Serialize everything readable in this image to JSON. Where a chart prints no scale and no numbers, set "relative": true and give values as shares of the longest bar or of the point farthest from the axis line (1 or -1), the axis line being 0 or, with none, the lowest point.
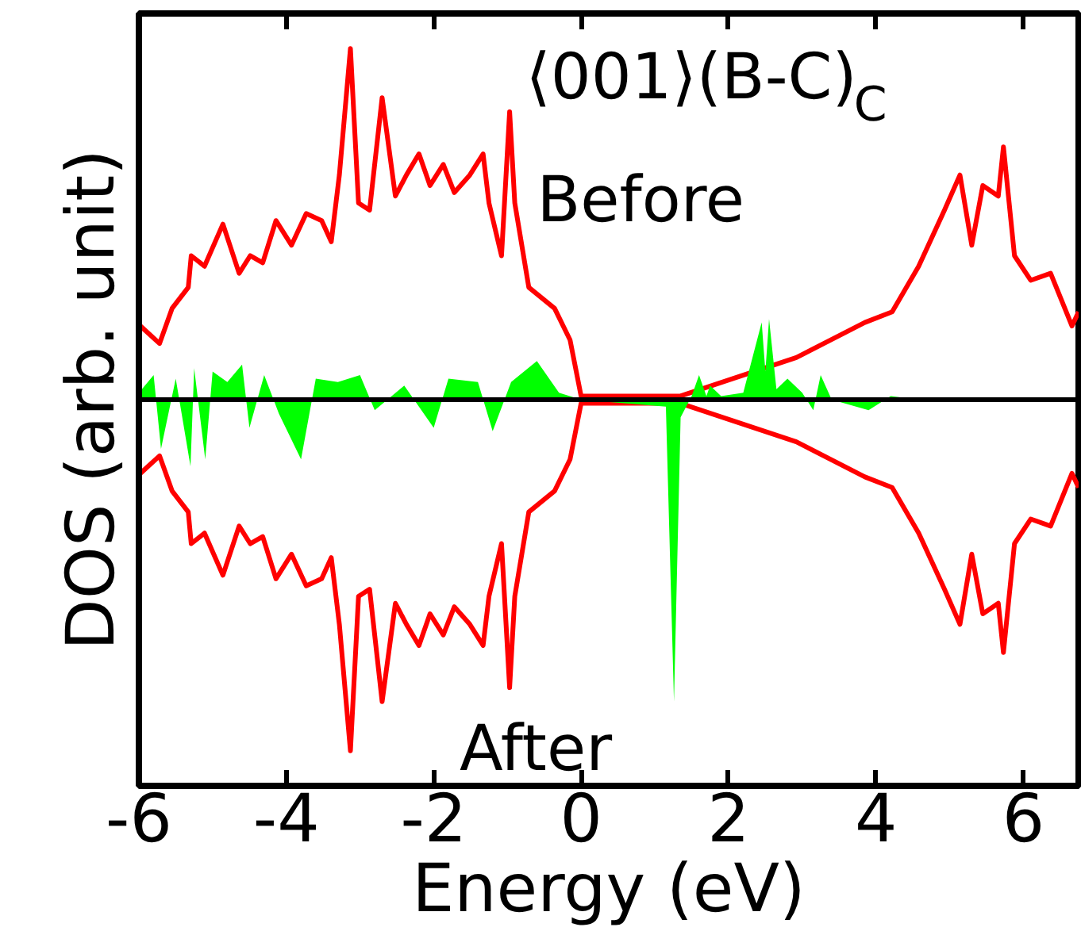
{
  "chart_data": {
    "type": "line",
    "relative": true,
    "xlabel": "Energy (eV)",
    "ylabel": "DOS (arb. unit)",
    "xlim": [
      -6,
      6.75
    ],
    "xticks": [
      -6,
      -4,
      -2,
      0,
      2,
      4,
      6
    ],
    "grid": false,
    "annotations": [
      "⟨001⟩(B-C)$_{C}$",
      "Before",
      "After"
    ],
    "series": [
      {
        "color": "#ff0000",
        "x": [
          -5.98,
          -5.72,
          -5.55,
          -5.33,
          -5.29,
          -5.11,
          -4.86,
          -4.64,
          -4.49,
          -4.32,
          -4.14,
          -3.93,
          -3.73,
          -3.52,
          -3.39,
          -3.28,
          -3.13,
          -3.02,
          -2.87,
          -2.7,
          -2.52,
          -2.37,
          -2.2,
          -2.05,
          -1.87,
          -1.72,
          -1.51,
          -1.33,
          -1.25,
          -1.08,
          -0.97,
          -0.9,
          -0.71,
          -0.36,
          -0.15,
          0.0,
          1.34,
          2.06,
          2.92,
          3.85,
          4.22,
          4.58,
          4.93,
          5.14,
          5.3,
          5.45,
          5.66,
          5.73,
          5.88,
          6.1,
          6.37,
          6.66,
          6.75
        ],
        "values": [
          0.21,
          0.16,
          0.26,
          0.32,
          0.41,
          0.38,
          0.5,
          0.36,
          0.41,
          0.39,
          0.51,
          0.44,
          0.53,
          0.51,
          0.45,
          0.64,
          1.0,
          0.56,
          0.54,
          0.86,
          0.58,
          0.64,
          0.7,
          0.61,
          0.67,
          0.59,
          0.64,
          0.7,
          0.56,
          0.41,
          0.82,
          0.56,
          0.32,
          0.26,
          0.17,
          0.01,
          0.01,
          0.06,
          0.12,
          0.22,
          0.25,
          0.38,
          0.54,
          0.64,
          0.44,
          0.61,
          0.58,
          0.72,
          0.41,
          0.34,
          0.36,
          0.21,
          0.25
        ]
      },
      {
        "color": "#ff0000",
        "x": [
          -5.98,
          -5.72,
          -5.55,
          -5.33,
          -5.29,
          -5.11,
          -4.86,
          -4.64,
          -4.49,
          -4.32,
          -4.14,
          -3.93,
          -3.73,
          -3.52,
          -3.39,
          -3.28,
          -3.13,
          -3.02,
          -2.87,
          -2.7,
          -2.52,
          -2.37,
          -2.2,
          -2.05,
          -1.87,
          -1.72,
          -1.51,
          -1.33,
          -1.25,
          -1.08,
          -0.97,
          -0.9,
          -0.71,
          -0.36,
          -0.15,
          0.0,
          1.34,
          2.06,
          2.92,
          3.85,
          4.22,
          4.58,
          4.93,
          5.14,
          5.3,
          5.45,
          5.66,
          5.73,
          5.88,
          6.1,
          6.37,
          6.66,
          6.75
        ],
        "values": [
          -0.21,
          -0.16,
          -0.26,
          -0.32,
          -0.41,
          -0.38,
          -0.5,
          -0.36,
          -0.41,
          -0.39,
          -0.51,
          -0.44,
          -0.53,
          -0.51,
          -0.45,
          -0.64,
          -1.0,
          -0.56,
          -0.54,
          -0.86,
          -0.58,
          -0.64,
          -0.7,
          -0.61,
          -0.67,
          -0.59,
          -0.64,
          -0.7,
          -0.56,
          -0.41,
          -0.82,
          -0.56,
          -0.32,
          -0.26,
          -0.17,
          -0.01,
          -0.01,
          -0.06,
          -0.12,
          -0.22,
          -0.25,
          -0.38,
          -0.54,
          -0.64,
          -0.44,
          -0.61,
          -0.58,
          -0.72,
          -0.41,
          -0.34,
          -0.36,
          -0.21,
          -0.25
        ]
      },
      {
        "type": "area",
        "color": "#00ff00",
        "x": [
          -6.0,
          -5.8,
          -5.7,
          -5.5,
          -5.3,
          -5.25,
          -5.1,
          -5.0,
          -4.8,
          -4.6,
          -4.5,
          -4.3,
          -4.1,
          -3.8,
          -3.6,
          -3.3,
          -3.0,
          -2.8,
          -2.4,
          -2.0,
          -1.8,
          -1.4,
          -1.2,
          -0.95,
          -0.6,
          -0.3,
          0.0,
          1.15,
          1.26,
          1.35,
          1.5,
          1.6,
          1.7,
          1.75,
          1.9,
          2.2,
          2.45,
          2.5,
          2.55,
          2.65,
          2.8,
          3.0,
          3.15,
          3.25,
          3.4,
          3.9,
          4.2,
          4.6
        ],
        "values": [
          0.02,
          0.07,
          -0.14,
          0.06,
          -0.19,
          0.09,
          -0.17,
          0.08,
          0.05,
          0.1,
          -0.08,
          0.07,
          -0.04,
          -0.17,
          0.06,
          0.05,
          0.07,
          -0.03,
          0.04,
          -0.08,
          0.06,
          0.05,
          -0.09,
          0.05,
          0.11,
          0.02,
          0.0,
          -0.02,
          -0.86,
          -0.05,
          0.01,
          0.07,
          0.01,
          0.04,
          0.01,
          0.02,
          0.22,
          0.08,
          0.23,
          0.03,
          0.06,
          0.02,
          -0.03,
          0.07,
          0.0,
          -0.03,
          0.01,
          0.0
        ]
      }
    ]
  }
}
